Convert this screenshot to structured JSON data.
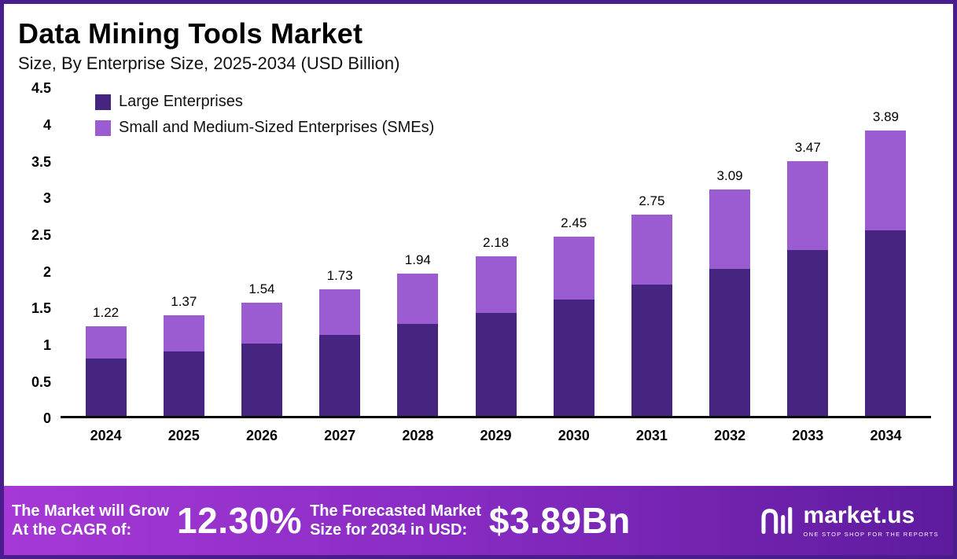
{
  "chart_data": {
    "type": "bar",
    "stacked": true,
    "title": "Data Mining Tools Market",
    "subtitle": "Size, By Enterprise Size, 2025-2034 (USD Billion)",
    "categories": [
      "2024",
      "2025",
      "2026",
      "2027",
      "2028",
      "2029",
      "2030",
      "2031",
      "2032",
      "2033",
      "2034"
    ],
    "series": [
      {
        "name": "Large Enterprises",
        "color": "#462580",
        "values": [
          0.78,
          0.88,
          0.99,
          1.11,
          1.26,
          1.41,
          1.59,
          1.79,
          2.01,
          2.26,
          2.53
        ]
      },
      {
        "name": "Small and Medium-Sized Enterprises (SMEs)",
        "color": "#9a5cd0",
        "values": [
          0.44,
          0.49,
          0.55,
          0.62,
          0.68,
          0.77,
          0.86,
          0.96,
          1.08,
          1.21,
          1.36
        ]
      }
    ],
    "totals": [
      1.22,
      1.37,
      1.54,
      1.73,
      1.94,
      2.18,
      2.45,
      2.75,
      3.09,
      3.47,
      3.89
    ],
    "ylim": [
      0,
      4.5
    ],
    "yticks": [
      0,
      0.5,
      1,
      1.5,
      2,
      2.5,
      3,
      3.5,
      4,
      4.5
    ],
    "legend_position": "top-left",
    "grid": false
  },
  "banner": {
    "cagr_label_line1": "The Market will Grow",
    "cagr_label_line2": "At the CAGR of:",
    "cagr_value": "12.30%",
    "forecast_label_line1": "The Forecasted Market",
    "forecast_label_line2": "Size for 2034 in USD:",
    "forecast_value": "$3.89Bn",
    "logo_text": "market.us",
    "logo_tagline": "One Stop Shop For The Reports"
  },
  "colors": {
    "border": "#4a1d8c",
    "large_enterprises": "#462580",
    "smes": "#9a5cd0",
    "banner_gradient_start": "#a639d6",
    "banner_gradient_end": "#5e1b9e",
    "axis": "#000000"
  }
}
